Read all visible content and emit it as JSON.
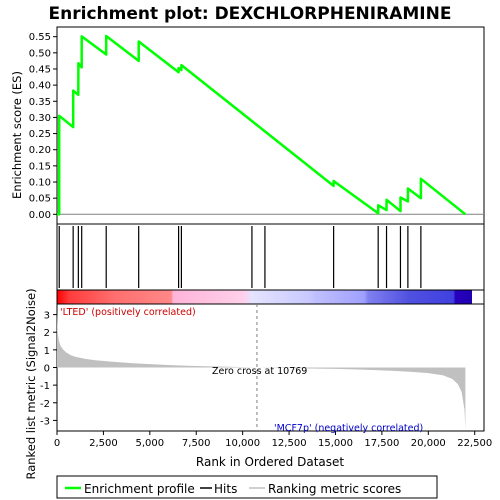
{
  "chart_data": [
    {
      "type": "line",
      "panel": "enrichment-score",
      "title": "Enrichment plot: DEXCHLORPHENIRAMINE",
      "ylabel": "Enrichment score (ES)",
      "ylim": [
        -0.03,
        0.58
      ],
      "yticks": [
        0.0,
        0.05,
        0.1,
        0.15,
        0.2,
        0.25,
        0.3,
        0.35,
        0.4,
        0.45,
        0.5,
        0.55
      ],
      "ytick_labels": [
        "0.00",
        "0.05",
        "0.10",
        "0.15",
        "0.20",
        "0.25",
        "0.30",
        "0.35",
        "0.40",
        "0.45",
        "0.50",
        "0.55"
      ],
      "line_color": "#00ff00",
      "series": [
        {
          "x": [
            0,
            120,
            121,
            870,
            871,
            1150,
            1151,
            1330,
            1331,
            2650,
            2651,
            4400,
            4401,
            6550,
            6551,
            6700,
            6701,
            14900,
            14901,
            17300,
            17301,
            17750,
            17751,
            18500,
            18501,
            18900,
            18901,
            19600,
            19601,
            22000
          ],
          "y": [
            0.0,
            0.0,
            0.305,
            0.27,
            0.383,
            0.37,
            0.468,
            0.455,
            0.551,
            0.495,
            0.552,
            0.475,
            0.535,
            0.44,
            0.453,
            0.447,
            0.462,
            0.088,
            0.103,
            0.003,
            0.028,
            0.013,
            0.045,
            0.01,
            0.052,
            0.04,
            0.08,
            0.05,
            0.11,
            0.0
          ]
        }
      ]
    },
    {
      "type": "scatter",
      "panel": "hits",
      "hits": [
        120,
        870,
        1150,
        1330,
        2650,
        4400,
        6550,
        6700,
        10500,
        11200,
        14900,
        17300,
        17750,
        18500,
        18900,
        19600
      ]
    },
    {
      "type": "area",
      "panel": "ranked-metric",
      "xlabel": "Rank in Ordered Dataset",
      "ylabel": "Ranked list metric (Signal2Noise)",
      "xlim": [
        0,
        23000
      ],
      "xticks": [
        0,
        2500,
        5000,
        7500,
        10000,
        12500,
        15000,
        17500,
        20000,
        22500
      ],
      "xtick_labels": [
        "0",
        "2,500",
        "5,000",
        "7,500",
        "10,000",
        "12,500",
        "15,000",
        "17,500",
        "20,000",
        "22,500"
      ],
      "ylim": [
        -3.6,
        3.6
      ],
      "yticks": [
        -3,
        -2,
        -1,
        0,
        1,
        2,
        3
      ],
      "ytick_labels": [
        "-3",
        "-2",
        "-1",
        "0",
        "1",
        "2",
        "3"
      ],
      "fill_color": "#c0c0c0",
      "x": [
        0,
        40,
        100,
        200,
        350,
        500,
        750,
        1000,
        1500,
        2000,
        3000,
        4000,
        5000,
        6000,
        7000,
        8000,
        9000,
        10000,
        10769,
        12000,
        13000,
        14000,
        15000,
        16000,
        17000,
        18000,
        19000,
        20000,
        20800,
        21300,
        21600,
        21800,
        21950,
        22000
      ],
      "y": [
        3.2,
        2.0,
        1.5,
        1.2,
        1.0,
        0.85,
        0.7,
        0.6,
        0.5,
        0.42,
        0.33,
        0.25,
        0.19,
        0.14,
        0.1,
        0.07,
        0.05,
        0.02,
        0.0,
        -0.02,
        -0.04,
        -0.06,
        -0.08,
        -0.11,
        -0.14,
        -0.18,
        -0.24,
        -0.32,
        -0.45,
        -0.65,
        -0.95,
        -1.4,
        -2.4,
        -3.5
      ],
      "zero_cross_label": "Zero cross at 10769",
      "zero_cross_rank": 10769,
      "positive_label": "'LTED' (positively correlated)",
      "negative_label": "'MCF7p' (negatively correlated)",
      "positive_color": "#cc0000",
      "negative_color": "#0000cc"
    }
  ],
  "legend": {
    "placement": "bottom",
    "items": [
      {
        "label": "Enrichment profile",
        "color": "#00ff00"
      },
      {
        "label": "Hits",
        "color": "#000000"
      },
      {
        "label": "Ranking metric scores",
        "color": "#c0c0c0"
      }
    ]
  }
}
